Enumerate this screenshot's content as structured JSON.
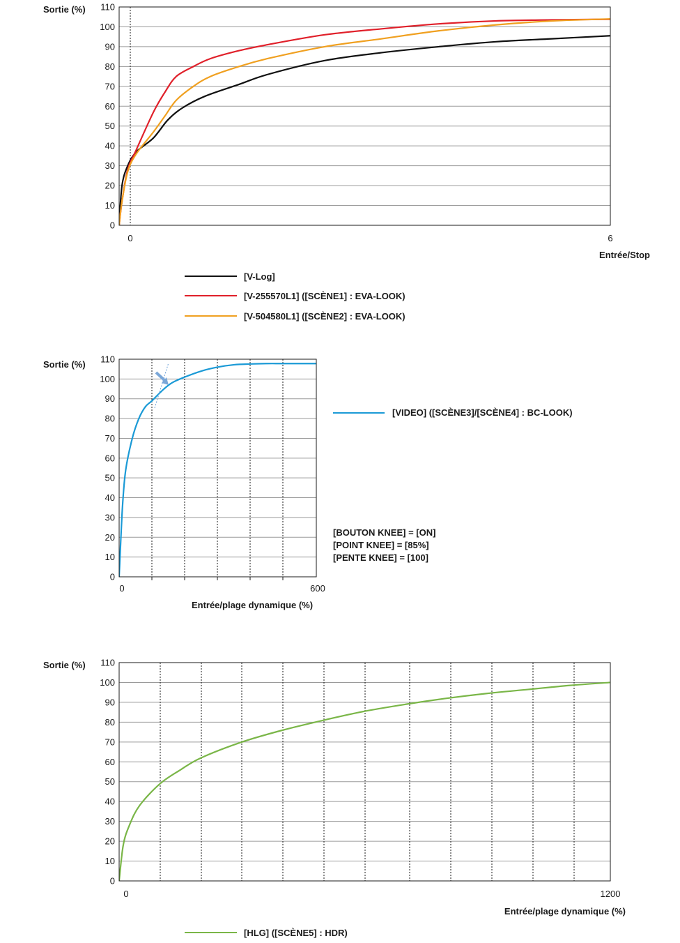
{
  "charts": [
    {
      "id": "chart1",
      "type": "line",
      "ylabel": "Sortie (%)",
      "xlabel": "Entrée/Stop",
      "ylim": [
        0,
        110
      ],
      "y_ticks": [
        "0",
        "10",
        "20",
        "30",
        "40",
        "50",
        "60",
        "70",
        "80",
        "90",
        "100",
        "110"
      ],
      "x_tick_labels": [
        "0",
        "6"
      ],
      "grid": "horizontal",
      "legend_position": "below",
      "series": [
        {
          "name": "[V-Log]",
          "color": "#111111",
          "points": [
            [
              -0.6,
              0
            ],
            [
              -0.55,
              20
            ],
            [
              -0.45,
              30
            ],
            [
              -0.3,
              37
            ],
            [
              0,
              44
            ],
            [
              0.25,
              53
            ],
            [
              0.5,
              59
            ],
            [
              0.9,
              65
            ],
            [
              1.5,
              71
            ],
            [
              2,
              76
            ],
            [
              3,
              83
            ],
            [
              4,
              87
            ],
            [
              5,
              90
            ],
            [
              6,
              92.5
            ],
            [
              7,
              94
            ],
            [
              8,
              95.5
            ]
          ]
        },
        {
          "name": "[V-255570L1] ([SCÈNE1] : EVA-LOOK)",
          "color": "#e0202a",
          "points": [
            [
              -0.6,
              0
            ],
            [
              -0.55,
              12
            ],
            [
              -0.45,
              28
            ],
            [
              -0.3,
              38
            ],
            [
              0,
              57
            ],
            [
              0.2,
              67
            ],
            [
              0.4,
              75
            ],
            [
              0.7,
              80
            ],
            [
              1,
              84
            ],
            [
              1.5,
              88
            ],
            [
              2,
              91
            ],
            [
              3,
              96
            ],
            [
              4,
              99
            ],
            [
              5,
              101.5
            ],
            [
              6,
              103
            ],
            [
              7,
              103.5
            ],
            [
              8,
              103.8
            ]
          ]
        },
        {
          "name": "[V-504580L1] ([SCÈNE2] : EVA-LOOK)",
          "color": "#f0a020",
          "points": [
            [
              -0.6,
              0
            ],
            [
              -0.55,
              12
            ],
            [
              -0.45,
              27
            ],
            [
              -0.3,
              36
            ],
            [
              0,
              47
            ],
            [
              0.2,
              55
            ],
            [
              0.4,
              63
            ],
            [
              0.7,
              70
            ],
            [
              1,
              75
            ],
            [
              1.5,
              80
            ],
            [
              2,
              84
            ],
            [
              3,
              90
            ],
            [
              4,
              94
            ],
            [
              5,
              98
            ],
            [
              6,
              101
            ],
            [
              7,
              103
            ],
            [
              8,
              104
            ]
          ]
        }
      ]
    },
    {
      "id": "chart2",
      "type": "line",
      "ylabel": "Sortie (%)",
      "xlabel": "Entrée/plage dynamique (%)",
      "ylim": [
        0,
        110
      ],
      "xlim": [
        0,
        600
      ],
      "y_ticks": [
        "0",
        "10",
        "20",
        "30",
        "40",
        "50",
        "60",
        "70",
        "80",
        "90",
        "100",
        "110"
      ],
      "x_tick_labels": [
        "0",
        "600"
      ],
      "grid": "horizontal",
      "legend_position": "right",
      "series": [
        {
          "name": "[VIDEO] ([SCÈNE3]/[SCÈNE4] : BC-LOOK)",
          "color": "#1b9ad6",
          "points": [
            [
              0,
              0
            ],
            [
              10,
              35
            ],
            [
              20,
              54
            ],
            [
              40,
              70
            ],
            [
              60,
              80
            ],
            [
              80,
              86
            ],
            [
              100,
              89
            ],
            [
              130,
              94
            ],
            [
              160,
              98
            ],
            [
              200,
              101
            ],
            [
              250,
              104
            ],
            [
              300,
              106
            ],
            [
              350,
              107.2
            ],
            [
              400,
              107.6
            ],
            [
              450,
              107.8
            ],
            [
              500,
              107.8
            ],
            [
              600,
              107.8
            ]
          ]
        }
      ],
      "annotation_lines": [
        "[BOUTON KNEE] = [ON]",
        "[POINT KNEE] = [85%]",
        "[PENTE KNEE] = [100]"
      ]
    },
    {
      "id": "chart3",
      "type": "line",
      "ylabel": "Sortie (%)",
      "xlabel": "Entrée/plage dynamique (%)",
      "ylim": [
        0,
        110
      ],
      "xlim": [
        0,
        1200
      ],
      "y_ticks": [
        "0",
        "10",
        "20",
        "30",
        "40",
        "50",
        "60",
        "70",
        "80",
        "90",
        "100",
        "110"
      ],
      "x_tick_labels": [
        "0",
        "1200"
      ],
      "grid": "horizontal",
      "legend_position": "below",
      "series": [
        {
          "name": "[HLG] ([SCÈNE5] : HDR)",
          "color": "#7ab648",
          "points": [
            [
              0,
              0
            ],
            [
              10,
              18
            ],
            [
              25,
              28
            ],
            [
              50,
              38
            ],
            [
              100,
              49
            ],
            [
              150,
              56
            ],
            [
              200,
              62
            ],
            [
              300,
              70
            ],
            [
              400,
              76
            ],
            [
              500,
              81
            ],
            [
              600,
              85.5
            ],
            [
              700,
              89
            ],
            [
              800,
              92
            ],
            [
              900,
              94.5
            ],
            [
              1000,
              96.5
            ],
            [
              1100,
              98.5
            ],
            [
              1200,
              100
            ]
          ]
        }
      ]
    }
  ]
}
